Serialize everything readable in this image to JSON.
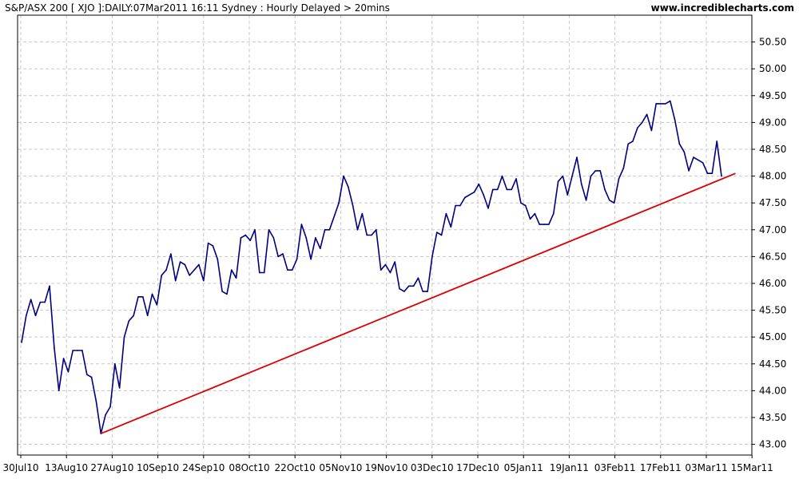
{
  "header": {
    "title": "S&P/ASX 200 [ XJO ]:DAILY:07Mar2011 16:11 Sydney : Hourly Delayed > 20mins",
    "site": "www.incrediblecharts.com"
  },
  "colors": {
    "price_line": "#000080",
    "trend_line": "#dd0000",
    "grid": "#c8c8c8",
    "axis": "#000000",
    "background": "#ffffff"
  },
  "chart_data": {
    "type": "line",
    "title": "S&P/ASX 200 [ XJO ]:DAILY:07Mar2011 16:11 Sydney : Hourly Delayed > 20mins",
    "xlabel": "",
    "ylabel": "",
    "ylim": [
      42.8,
      51.0
    ],
    "y_ticks": [
      "43.00",
      "43.50",
      "44.00",
      "44.50",
      "45.00",
      "45.50",
      "46.00",
      "46.50",
      "47.00",
      "47.50",
      "48.00",
      "48.50",
      "49.00",
      "49.50",
      "50.00",
      "50.50"
    ],
    "x_ticks": [
      "30Jul10",
      "13Aug10",
      "27Aug10",
      "10Sep10",
      "24Sep10",
      "08Oct10",
      "22Oct10",
      "05Nov10",
      "19Nov10",
      "03Dec10",
      "17Dec10",
      "05Jan11",
      "19Jan11",
      "03Feb11",
      "17Feb11",
      "03Mar11",
      "15Mar11"
    ],
    "grid": true,
    "y_axis_side": "right",
    "series": [
      {
        "values": [
          44.9,
          45.4,
          45.7,
          45.4,
          45.65,
          45.65,
          45.95,
          44.8,
          44.0,
          44.6,
          44.35,
          44.75,
          44.75,
          44.75,
          44.3,
          44.25,
          43.8,
          43.2,
          43.55,
          43.7,
          44.5,
          44.05,
          45.0,
          45.3,
          45.4,
          45.75,
          45.75,
          45.4,
          45.8,
          45.6,
          46.15,
          46.25,
          46.55,
          46.05,
          46.4,
          46.35,
          46.15,
          46.25,
          46.35,
          46.05,
          46.75,
          46.7,
          46.45,
          45.85,
          45.8,
          46.25,
          46.1,
          46.85,
          46.9,
          46.8,
          47.0,
          46.2,
          46.2,
          47.0,
          46.85,
          46.5,
          46.55,
          46.25,
          46.25,
          46.45,
          47.1,
          46.85,
          46.45,
          46.85,
          46.65,
          47.0,
          47.0,
          47.25,
          47.5,
          48.0,
          47.8,
          47.45,
          47.0,
          47.3,
          46.9,
          46.9,
          47.0,
          46.25,
          46.35,
          46.2,
          46.4,
          45.9,
          45.85,
          45.95,
          45.95,
          46.1,
          45.85,
          45.85,
          46.5,
          46.95,
          46.9,
          47.3,
          47.05,
          47.45,
          47.45,
          47.6,
          47.65,
          47.7,
          47.85,
          47.65,
          47.4,
          47.75,
          47.75,
          48.0,
          47.75,
          47.75,
          47.95,
          47.5,
          47.45,
          47.2,
          47.3,
          47.1,
          47.1,
          47.1,
          47.3,
          47.9,
          48.0,
          47.65,
          48.0,
          48.35,
          47.85,
          47.55,
          48.0,
          48.1,
          48.1,
          47.75,
          47.55,
          47.5,
          47.95,
          48.15,
          48.6,
          48.65,
          48.9,
          49.0,
          49.15,
          48.85,
          49.35,
          49.35,
          49.35,
          49.4,
          49.05,
          48.6,
          48.45,
          48.1,
          48.35,
          48.3,
          48.25,
          48.05,
          48.05,
          48.65,
          48.0
        ]
      },
      {
        "name": "",
        "type": "trendline",
        "x_index": [
          17,
          153
        ],
        "values": [
          43.2,
          48.05
        ]
      }
    ]
  }
}
